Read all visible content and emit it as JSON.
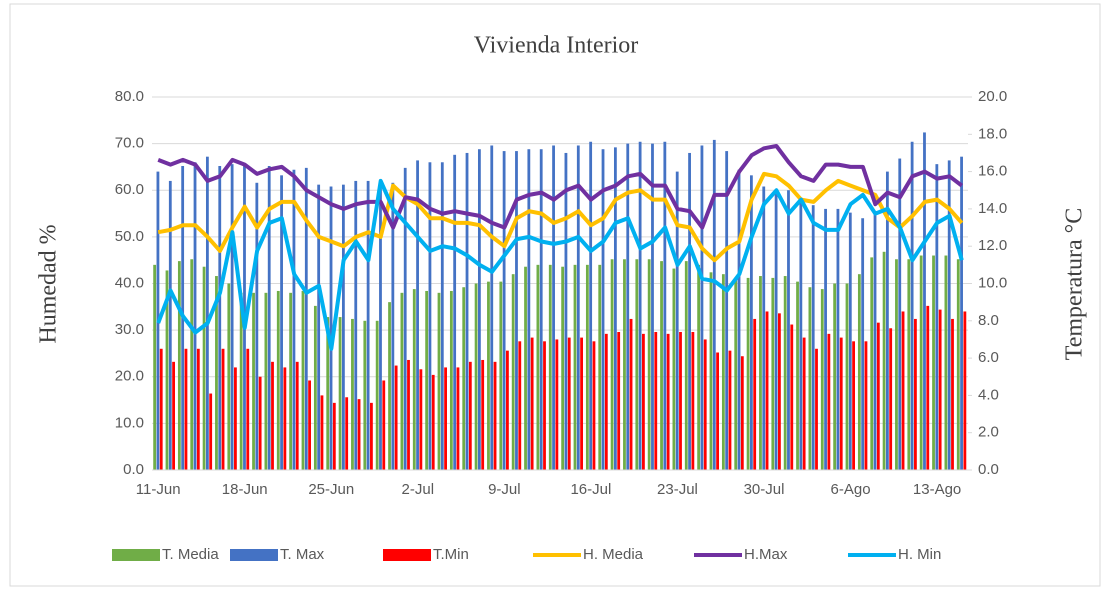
{
  "chart_data": {
    "type": "bar-line",
    "title": "Vivienda Interior",
    "y_label": "Humedad  %",
    "y2_label": "Temperatura  °C",
    "categories": [
      "11-Jun",
      null,
      null,
      null,
      null,
      null,
      null,
      "18-Jun",
      null,
      null,
      null,
      null,
      null,
      null,
      "25-Jun",
      null,
      null,
      null,
      null,
      null,
      null,
      "2-Jul",
      null,
      null,
      null,
      null,
      null,
      null,
      "9-Jul",
      null,
      null,
      null,
      null,
      null,
      null,
      "16-Jul",
      null,
      null,
      null,
      null,
      null,
      null,
      "23-Jul",
      null,
      null,
      null,
      null,
      null,
      null,
      "30-Jul",
      null,
      null,
      null,
      null,
      null,
      null,
      "6-Ago",
      null,
      null,
      null,
      null,
      null,
      null,
      "13-Ago",
      null,
      null
    ],
    "ylim": [
      0,
      80
    ],
    "yticks": [
      {
        "value": 0,
        "label": "0.0"
      },
      {
        "value": 10,
        "label": "10.0"
      },
      {
        "value": 20,
        "label": "20.0"
      },
      {
        "value": 30,
        "label": "30.0"
      },
      {
        "value": 40,
        "label": "40.0"
      },
      {
        "value": 50,
        "label": "50.0"
      },
      {
        "value": 60,
        "label": "60.0"
      },
      {
        "value": 70,
        "label": "70.0"
      },
      {
        "value": 80,
        "label": "80.0"
      }
    ],
    "y2lim": [
      0,
      20
    ],
    "y2ticks": [
      {
        "value": 0,
        "label": "0.0"
      },
      {
        "value": 2,
        "label": "2.0"
      },
      {
        "value": 4,
        "label": "4.0"
      },
      {
        "value": 6,
        "label": "6.0"
      },
      {
        "value": 8,
        "label": "8.0"
      },
      {
        "value": 10,
        "label": "10.0"
      },
      {
        "value": 12,
        "label": "12.0"
      },
      {
        "value": 14,
        "label": "14.0"
      },
      {
        "value": 16,
        "label": "16.0"
      },
      {
        "value": 18,
        "label": "18.0"
      },
      {
        "value": 20,
        "label": "20.0"
      }
    ],
    "grid": true,
    "legend": "bottom",
    "series": [
      {
        "name": "T. Media",
        "kind": "bar",
        "axis": "y2",
        "color": "#70ad47",
        "values": [
          11.0,
          10.7,
          11.2,
          11.3,
          10.9,
          10.4,
          10.0,
          9.5,
          9.5,
          9.5,
          9.6,
          9.5,
          9.6,
          8.8,
          8.2,
          8.2,
          8.1,
          8.0,
          8.0,
          9.0,
          9.5,
          9.7,
          9.6,
          9.5,
          9.6,
          9.8,
          10.0,
          10.1,
          10.1,
          10.5,
          10.9,
          11.0,
          11.0,
          10.9,
          11.0,
          11.0,
          11.0,
          11.3,
          11.3,
          11.3,
          11.3,
          11.2,
          10.8,
          11.2,
          11.0,
          10.6,
          10.5,
          10.3,
          10.3,
          10.4,
          10.3,
          10.4,
          10.1,
          9.8,
          9.7,
          10.0,
          10.0,
          10.5,
          11.4,
          11.7,
          11.3,
          11.3,
          11.5,
          11.5,
          11.5,
          11.3
        ]
      },
      {
        "name": "T. Max",
        "kind": "bar",
        "axis": "y2",
        "color": "#4472c4",
        "values": [
          16.0,
          15.5,
          16.3,
          16.5,
          16.8,
          16.3,
          16.4,
          16.4,
          15.4,
          16.3,
          15.8,
          16.1,
          16.2,
          15.3,
          15.2,
          15.3,
          15.5,
          15.5,
          15.4,
          15.4,
          16.2,
          16.6,
          16.5,
          16.5,
          16.9,
          17.0,
          17.2,
          17.4,
          17.1,
          17.1,
          17.2,
          17.2,
          17.4,
          17.0,
          17.4,
          17.6,
          17.2,
          17.3,
          17.5,
          17.6,
          17.5,
          17.6,
          16.0,
          17.0,
          17.4,
          17.7,
          17.1,
          16.1,
          15.8,
          15.2,
          14.9,
          15.0,
          14.6,
          14.2,
          14.0,
          14.0,
          13.8,
          13.5,
          13.8,
          16.0,
          16.7,
          17.6,
          18.1,
          16.4,
          16.6,
          16.8
        ]
      },
      {
        "name": "T.Min",
        "kind": "bar",
        "axis": "y2",
        "color": "#ff0000",
        "values": [
          6.5,
          5.8,
          6.5,
          6.5,
          4.1,
          6.5,
          5.5,
          6.5,
          5.0,
          5.8,
          5.5,
          5.8,
          4.8,
          4.0,
          3.6,
          3.9,
          3.8,
          3.6,
          4.8,
          5.6,
          5.9,
          5.4,
          5.1,
          5.5,
          5.5,
          5.8,
          5.9,
          5.8,
          6.4,
          6.9,
          7.1,
          6.9,
          7.0,
          7.1,
          7.1,
          6.9,
          7.3,
          7.4,
          8.1,
          7.3,
          7.4,
          7.3,
          7.4,
          7.4,
          7.0,
          6.3,
          6.4,
          6.1,
          8.1,
          8.5,
          8.4,
          7.8,
          7.1,
          6.5,
          7.3,
          7.1,
          6.9,
          6.9,
          7.9,
          7.6,
          8.5,
          8.1,
          8.8,
          8.6,
          8.1,
          8.5
        ]
      },
      {
        "name": "H. Media",
        "kind": "line",
        "axis": "y",
        "color": "#ffc000",
        "values": [
          51,
          51.5,
          52.5,
          52.5,
          50,
          47,
          52,
          56.5,
          52,
          56,
          57.5,
          57.5,
          53.5,
          50,
          49,
          48,
          50,
          51,
          50,
          61,
          58.5,
          57,
          54,
          54,
          53,
          53,
          52.5,
          50,
          48,
          54,
          55.5,
          55,
          53,
          54,
          55.5,
          52.5,
          54,
          58,
          59.5,
          60,
          58,
          58,
          52.5,
          52,
          47.5,
          45,
          47.5,
          49,
          58,
          63.5,
          63,
          61,
          58,
          57.5,
          60,
          62,
          61,
          60,
          59,
          54,
          52,
          54.5,
          57.5,
          58,
          56,
          53
        ]
      },
      {
        "name": "H.Max",
        "kind": "line",
        "axis": "y",
        "color": "#7030a0",
        "values": [
          66.5,
          65.5,
          66.5,
          65.5,
          62,
          63,
          66.5,
          65.5,
          63.5,
          64.5,
          65,
          63,
          60,
          58.5,
          57,
          56,
          57,
          57.5,
          57.5,
          52,
          58.5,
          58,
          56,
          55,
          55.5,
          55,
          54.5,
          53,
          52,
          58,
          59,
          59.5,
          58,
          60,
          61,
          58,
          60,
          61,
          63,
          63.5,
          61,
          61,
          56,
          55.5,
          52,
          59,
          59,
          64,
          67.5,
          69,
          69.5,
          66,
          63,
          62,
          65.5,
          65.5,
          65,
          65,
          57,
          59.5,
          58.5,
          63,
          64,
          62.5,
          63,
          61
        ]
      },
      {
        "name": "H. Min",
        "kind": "line",
        "axis": "y",
        "color": "#00b0f0",
        "values": [
          31.5,
          38.5,
          33,
          29.5,
          31.5,
          38,
          51,
          30.5,
          47,
          53,
          54,
          42,
          38,
          39.5,
          26,
          45,
          49,
          45,
          62,
          56,
          53,
          50,
          47,
          48,
          47.5,
          46,
          44,
          42.5,
          46,
          49.5,
          50,
          49,
          48.5,
          49,
          50,
          47,
          49,
          53,
          54,
          47.5,
          49,
          52,
          44,
          48,
          41,
          40.5,
          38.5,
          42,
          50,
          57,
          60,
          55,
          58,
          53,
          51.5,
          51.5,
          57,
          59,
          55,
          56,
          52,
          45,
          49,
          53,
          54.5,
          45
        ]
      }
    ]
  }
}
